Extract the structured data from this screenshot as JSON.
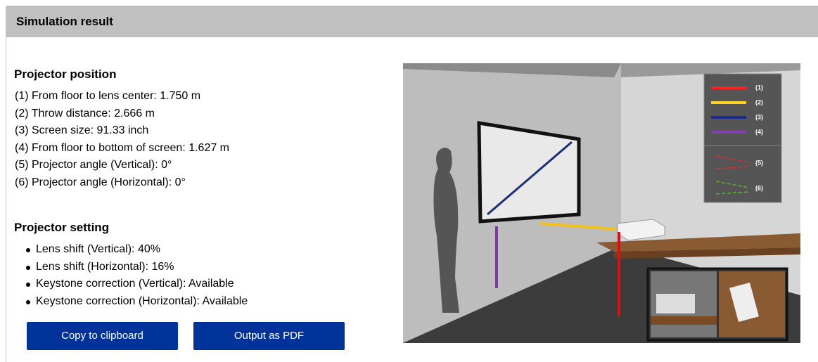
{
  "header": {
    "title": "Simulation result"
  },
  "position": {
    "title": "Projector position",
    "items": [
      "(1) From floor to lens center: 1.750 m",
      "(2) Throw distance: 2.666 m",
      "(3) Screen size: 91.33 inch",
      "(4) From floor to bottom of screen: 1.627 m",
      "(5) Projector angle (Vertical): 0°",
      "(6) Projector angle (Horizontal): 0°"
    ]
  },
  "setting": {
    "title": "Projector setting",
    "items": [
      "Lens shift (Vertical): 40%",
      "Lens shift (Horizontal): 16%",
      "Keystone correction (Vertical): Available",
      "Keystone correction (Horizontal): Available"
    ]
  },
  "buttons": [
    "Copy to clipboard",
    "Output as PDF"
  ],
  "legend": [
    "(1)",
    "(2)",
    "(3)",
    "(4)",
    "(5)",
    "(6)"
  ]
}
